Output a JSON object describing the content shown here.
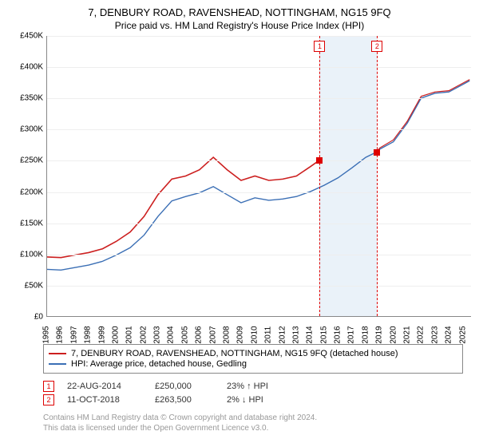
{
  "title": "7, DENBURY ROAD, RAVENSHEAD, NOTTINGHAM, NG15 9FQ",
  "subtitle": "Price paid vs. HM Land Registry's House Price Index (HPI)",
  "chart": {
    "type": "line",
    "ylim": [
      0,
      450000
    ],
    "ytick_step": 50000,
    "yticks": [
      "£0",
      "£50K",
      "£100K",
      "£150K",
      "£200K",
      "£250K",
      "£300K",
      "£350K",
      "£400K",
      "£450K"
    ],
    "xlim": [
      1995,
      2025.6
    ],
    "xticks": [
      1995,
      1996,
      1997,
      1998,
      1999,
      2000,
      2001,
      2002,
      2003,
      2004,
      2005,
      2006,
      2007,
      2008,
      2009,
      2010,
      2011,
      2012,
      2013,
      2014,
      2015,
      2016,
      2017,
      2018,
      2019,
      2020,
      2021,
      2022,
      2023,
      2024,
      2025
    ],
    "highlight_band": {
      "start": 2014.64,
      "end": 2018.78,
      "color": "#eaf2f9"
    },
    "series": [
      {
        "name": "property",
        "label": "7, DENBURY ROAD, RAVENSHEAD, NOTTINGHAM, NG15 9FQ (detached house)",
        "color": "#cc1f1f",
        "line_width": 1.6,
        "data": [
          [
            1995,
            95000
          ],
          [
            1996,
            94000
          ],
          [
            1997,
            98000
          ],
          [
            1998,
            102000
          ],
          [
            1999,
            108000
          ],
          [
            2000,
            120000
          ],
          [
            2001,
            135000
          ],
          [
            2002,
            160000
          ],
          [
            2003,
            195000
          ],
          [
            2004,
            220000
          ],
          [
            2005,
            225000
          ],
          [
            2006,
            235000
          ],
          [
            2007,
            255000
          ],
          [
            2008,
            235000
          ],
          [
            2009,
            218000
          ],
          [
            2010,
            225000
          ],
          [
            2011,
            218000
          ],
          [
            2012,
            220000
          ],
          [
            2013,
            225000
          ],
          [
            2014,
            240000
          ],
          [
            2014.64,
            250000
          ]
        ]
      },
      {
        "name": "hpi",
        "label": "HPI: Average price, detached house, Gedling",
        "color": "#3b6fb5",
        "line_width": 1.4,
        "data": [
          [
            1995,
            75000
          ],
          [
            1996,
            74000
          ],
          [
            1997,
            78000
          ],
          [
            1998,
            82000
          ],
          [
            1999,
            88000
          ],
          [
            2000,
            98000
          ],
          [
            2001,
            110000
          ],
          [
            2002,
            130000
          ],
          [
            2003,
            160000
          ],
          [
            2004,
            185000
          ],
          [
            2005,
            192000
          ],
          [
            2006,
            198000
          ],
          [
            2007,
            208000
          ],
          [
            2008,
            195000
          ],
          [
            2009,
            182000
          ],
          [
            2010,
            190000
          ],
          [
            2011,
            186000
          ],
          [
            2012,
            188000
          ],
          [
            2013,
            192000
          ],
          [
            2014,
            200000
          ],
          [
            2015,
            210000
          ],
          [
            2016,
            222000
          ],
          [
            2017,
            238000
          ],
          [
            2018,
            255000
          ],
          [
            2018.78,
            263500
          ],
          [
            2019,
            268000
          ],
          [
            2020,
            280000
          ],
          [
            2021,
            310000
          ],
          [
            2022,
            350000
          ],
          [
            2023,
            358000
          ],
          [
            2024,
            360000
          ],
          [
            2025,
            372000
          ],
          [
            2025.5,
            378000
          ]
        ]
      },
      {
        "name": "hpi_scaled_post",
        "label": "",
        "color": "#cc1f1f",
        "line_width": 1.2,
        "data": [
          [
            2018.78,
            263500
          ],
          [
            2019,
            270000
          ],
          [
            2020,
            283000
          ],
          [
            2021,
            313000
          ],
          [
            2022,
            353000
          ],
          [
            2023,
            360000
          ],
          [
            2024,
            362000
          ],
          [
            2025,
            374000
          ],
          [
            2025.5,
            380000
          ]
        ]
      }
    ],
    "markers": [
      {
        "n": "1",
        "x": 2014.64,
        "y": 250000
      },
      {
        "n": "2",
        "x": 2018.78,
        "y": 263500
      }
    ],
    "grid_color": "#eeeeee",
    "axis_color": "#888888",
    "background": "#ffffff"
  },
  "legend": {
    "items": [
      {
        "color": "#cc1f1f",
        "label": "7, DENBURY ROAD, RAVENSHEAD, NOTTINGHAM, NG15 9FQ (detached house)"
      },
      {
        "color": "#3b6fb5",
        "label": "HPI: Average price, detached house, Gedling"
      }
    ]
  },
  "transactions": [
    {
      "n": "1",
      "date": "22-AUG-2014",
      "price": "£250,000",
      "pct": "23% ↑ HPI"
    },
    {
      "n": "2",
      "date": "11-OCT-2018",
      "price": "£263,500",
      "pct": "2% ↓ HPI"
    }
  ],
  "footer": {
    "line1": "Contains HM Land Registry data © Crown copyright and database right 2024.",
    "line2": "This data is licensed under the Open Government Licence v3.0."
  }
}
